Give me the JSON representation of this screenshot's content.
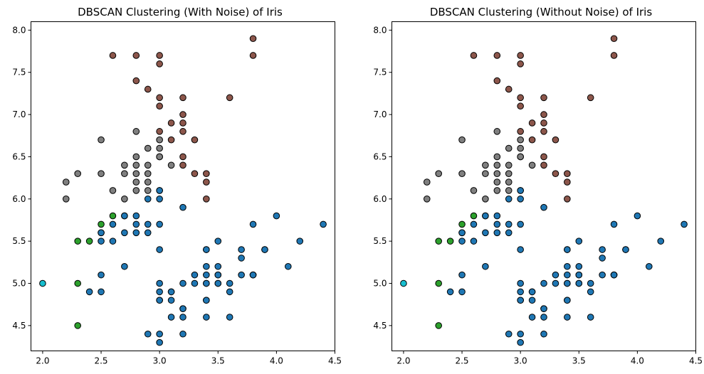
{
  "chart_data": [
    {
      "type": "scatter",
      "title": "DBSCAN Clustering (With Noise) of Iris",
      "xlim": [
        1.9,
        4.5
      ],
      "ylim": [
        4.2,
        8.1
      ],
      "xticks": [
        "2.0",
        "2.5",
        "3.0",
        "3.5",
        "4.0",
        "4.5"
      ],
      "yticks": [
        "4.5",
        "5.0",
        "5.5",
        "6.0",
        "6.5",
        "7.0",
        "7.5",
        "8.0"
      ],
      "series": [
        {
          "color": "#1f77b4",
          "points": [
            [
              3.5,
              5.1
            ],
            [
              3.0,
              4.9
            ],
            [
              3.2,
              4.7
            ],
            [
              3.1,
              4.6
            ],
            [
              3.6,
              5.0
            ],
            [
              3.9,
              5.4
            ],
            [
              3.4,
              4.6
            ],
            [
              3.4,
              5.0
            ],
            [
              2.9,
              4.4
            ],
            [
              3.1,
              4.9
            ],
            [
              3.7,
              5.4
            ],
            [
              3.4,
              4.8
            ],
            [
              3.0,
              4.8
            ],
            [
              3.0,
              4.3
            ],
            [
              4.0,
              5.8
            ],
            [
              4.4,
              5.7
            ],
            [
              3.9,
              5.4
            ],
            [
              3.5,
              5.1
            ],
            [
              3.8,
              5.7
            ],
            [
              3.8,
              5.1
            ],
            [
              3.4,
              5.4
            ],
            [
              3.7,
              5.1
            ],
            [
              3.6,
              4.6
            ],
            [
              3.3,
              5.1
            ],
            [
              3.4,
              4.8
            ],
            [
              3.0,
              5.0
            ],
            [
              3.4,
              5.0
            ],
            [
              3.5,
              5.2
            ],
            [
              3.4,
              5.2
            ],
            [
              3.2,
              4.7
            ],
            [
              3.1,
              4.8
            ],
            [
              3.4,
              5.4
            ],
            [
              4.1,
              5.2
            ],
            [
              4.2,
              5.5
            ],
            [
              3.1,
              4.9
            ],
            [
              3.2,
              5.0
            ],
            [
              3.5,
              5.5
            ],
            [
              3.6,
              4.9
            ],
            [
              3.0,
              4.4
            ],
            [
              3.4,
              5.1
            ],
            [
              3.5,
              5.0
            ],
            [
              3.2,
              4.4
            ],
            [
              3.5,
              5.0
            ],
            [
              3.8,
              5.1
            ],
            [
              3.0,
              4.8
            ],
            [
              3.8,
              5.1
            ],
            [
              3.2,
              4.6
            ],
            [
              3.7,
              5.3
            ],
            [
              3.3,
              5.0
            ],
            [
              3.2,
              5.9
            ],
            [
              3.0,
              6.0
            ],
            [
              3.0,
              6.1
            ],
            [
              2.9,
              6.0
            ],
            [
              2.7,
              5.8
            ],
            [
              2.8,
              5.7
            ],
            [
              2.5,
              5.5
            ],
            [
              2.6,
              5.7
            ],
            [
              2.7,
              5.2
            ],
            [
              2.8,
              5.6
            ],
            [
              3.0,
              5.4
            ],
            [
              2.9,
              5.6
            ],
            [
              3.0,
              5.7
            ],
            [
              2.5,
              5.1
            ],
            [
              2.6,
              5.5
            ],
            [
              2.5,
              5.6
            ],
            [
              2.7,
              5.8
            ],
            [
              2.9,
              5.7
            ],
            [
              2.8,
              5.8
            ],
            [
              3.0,
              6.1
            ],
            [
              2.7,
              5.6
            ],
            [
              2.5,
              4.9
            ],
            [
              2.4,
              4.9
            ],
            [
              2.5,
              5.6
            ]
          ]
        },
        {
          "color": "#8c564b",
          "points": [
            [
              3.8,
              7.7
            ],
            [
              3.8,
              7.9
            ],
            [
              3.0,
              7.7
            ],
            [
              2.8,
              7.7
            ],
            [
              2.6,
              7.7
            ],
            [
              3.0,
              7.6
            ],
            [
              2.8,
              7.4
            ],
            [
              2.9,
              7.3
            ],
            [
              3.0,
              7.2
            ],
            [
              3.2,
              7.2
            ],
            [
              3.6,
              7.2
            ],
            [
              3.0,
              7.1
            ],
            [
              3.2,
              7.0
            ],
            [
              3.1,
              6.9
            ],
            [
              3.2,
              6.9
            ],
            [
              3.2,
              6.8
            ],
            [
              3.0,
              6.8
            ],
            [
              3.1,
              6.7
            ],
            [
              3.3,
              6.7
            ],
            [
              3.2,
              6.5
            ],
            [
              3.2,
              6.4
            ],
            [
              3.3,
              6.3
            ],
            [
              3.4,
              6.3
            ],
            [
              3.4,
              6.2
            ],
            [
              3.4,
              6.0
            ]
          ]
        },
        {
          "color": "#7f7f7f",
          "points": [
            [
              2.5,
              6.7
            ],
            [
              2.8,
              6.8
            ],
            [
              3.0,
              6.7
            ],
            [
              2.9,
              6.6
            ],
            [
              3.0,
              6.6
            ],
            [
              2.8,
              6.5
            ],
            [
              3.0,
              6.5
            ],
            [
              2.7,
              6.4
            ],
            [
              2.8,
              6.4
            ],
            [
              2.9,
              6.4
            ],
            [
              3.1,
              6.4
            ],
            [
              2.8,
              6.3
            ],
            [
              2.9,
              6.3
            ],
            [
              2.5,
              6.3
            ],
            [
              2.3,
              6.3
            ],
            [
              2.7,
              6.3
            ],
            [
              2.8,
              6.2
            ],
            [
              2.9,
              6.2
            ],
            [
              2.2,
              6.2
            ],
            [
              2.8,
              6.1
            ],
            [
              2.9,
              6.1
            ],
            [
              2.6,
              6.1
            ],
            [
              2.2,
              6.0
            ],
            [
              2.7,
              6.0
            ],
            [
              3.0,
              6.5
            ]
          ]
        },
        {
          "color": "#2ca02c",
          "points": [
            [
              2.6,
              5.8
            ],
            [
              2.5,
              5.7
            ],
            [
              2.3,
              5.5
            ],
            [
              2.4,
              5.5
            ],
            [
              2.3,
              5.0
            ],
            [
              2.3,
              4.5
            ]
          ]
        },
        {
          "color": "#17becf",
          "points": [
            [
              2.0,
              5.0
            ]
          ]
        }
      ]
    },
    {
      "type": "scatter",
      "title": "DBSCAN Clustering (Without Noise) of Iris",
      "xlim": [
        1.9,
        4.5
      ],
      "ylim": [
        4.2,
        8.1
      ],
      "xticks": [
        "2.0",
        "2.5",
        "3.0",
        "3.5",
        "4.0",
        "4.5"
      ],
      "yticks": [
        "4.5",
        "5.0",
        "5.5",
        "6.0",
        "6.5",
        "7.0",
        "7.5",
        "8.0"
      ],
      "series": [
        {
          "color": "#1f77b4",
          "points": [
            [
              3.5,
              5.1
            ],
            [
              3.0,
              4.9
            ],
            [
              3.2,
              4.7
            ],
            [
              3.1,
              4.6
            ],
            [
              3.6,
              5.0
            ],
            [
              3.9,
              5.4
            ],
            [
              3.4,
              4.6
            ],
            [
              3.4,
              5.0
            ],
            [
              2.9,
              4.4
            ],
            [
              3.1,
              4.9
            ],
            [
              3.7,
              5.4
            ],
            [
              3.4,
              4.8
            ],
            [
              3.0,
              4.8
            ],
            [
              3.0,
              4.3
            ],
            [
              4.0,
              5.8
            ],
            [
              4.4,
              5.7
            ],
            [
              3.9,
              5.4
            ],
            [
              3.5,
              5.1
            ],
            [
              3.8,
              5.7
            ],
            [
              3.8,
              5.1
            ],
            [
              3.4,
              5.4
            ],
            [
              3.7,
              5.1
            ],
            [
              3.6,
              4.6
            ],
            [
              3.3,
              5.1
            ],
            [
              3.4,
              4.8
            ],
            [
              3.0,
              5.0
            ],
            [
              3.4,
              5.0
            ],
            [
              3.5,
              5.2
            ],
            [
              3.4,
              5.2
            ],
            [
              3.2,
              4.7
            ],
            [
              3.1,
              4.8
            ],
            [
              3.4,
              5.4
            ],
            [
              4.1,
              5.2
            ],
            [
              4.2,
              5.5
            ],
            [
              3.1,
              4.9
            ],
            [
              3.2,
              5.0
            ],
            [
              3.5,
              5.5
            ],
            [
              3.6,
              4.9
            ],
            [
              3.0,
              4.4
            ],
            [
              3.4,
              5.1
            ],
            [
              3.5,
              5.0
            ],
            [
              3.2,
              4.4
            ],
            [
              3.5,
              5.0
            ],
            [
              3.8,
              5.1
            ],
            [
              3.0,
              4.8
            ],
            [
              3.8,
              5.1
            ],
            [
              3.2,
              4.6
            ],
            [
              3.7,
              5.3
            ],
            [
              3.3,
              5.0
            ],
            [
              3.2,
              5.9
            ],
            [
              3.0,
              6.0
            ],
            [
              3.0,
              6.1
            ],
            [
              2.9,
              6.0
            ],
            [
              2.7,
              5.8
            ],
            [
              2.8,
              5.7
            ],
            [
              2.5,
              5.5
            ],
            [
              2.6,
              5.7
            ],
            [
              2.7,
              5.2
            ],
            [
              2.8,
              5.6
            ],
            [
              3.0,
              5.4
            ],
            [
              2.9,
              5.6
            ],
            [
              3.0,
              5.7
            ],
            [
              2.5,
              5.1
            ],
            [
              2.6,
              5.5
            ],
            [
              2.5,
              5.6
            ],
            [
              2.7,
              5.8
            ],
            [
              2.9,
              5.7
            ],
            [
              2.8,
              5.8
            ],
            [
              3.0,
              6.1
            ],
            [
              2.7,
              5.6
            ],
            [
              2.5,
              4.9
            ],
            [
              2.4,
              4.9
            ],
            [
              2.5,
              5.6
            ]
          ]
        },
        {
          "color": "#8c564b",
          "points": [
            [
              3.8,
              7.7
            ],
            [
              3.8,
              7.9
            ],
            [
              3.0,
              7.7
            ],
            [
              2.8,
              7.7
            ],
            [
              2.6,
              7.7
            ],
            [
              3.0,
              7.6
            ],
            [
              2.8,
              7.4
            ],
            [
              2.9,
              7.3
            ],
            [
              3.0,
              7.2
            ],
            [
              3.2,
              7.2
            ],
            [
              3.6,
              7.2
            ],
            [
              3.0,
              7.1
            ],
            [
              3.2,
              7.0
            ],
            [
              3.1,
              6.9
            ],
            [
              3.2,
              6.9
            ],
            [
              3.2,
              6.8
            ],
            [
              3.0,
              6.8
            ],
            [
              3.1,
              6.7
            ],
            [
              3.3,
              6.7
            ],
            [
              3.2,
              6.5
            ],
            [
              3.2,
              6.4
            ],
            [
              3.3,
              6.3
            ],
            [
              3.4,
              6.3
            ],
            [
              3.4,
              6.2
            ],
            [
              3.4,
              6.0
            ]
          ]
        },
        {
          "color": "#7f7f7f",
          "points": [
            [
              2.5,
              6.7
            ],
            [
              2.8,
              6.8
            ],
            [
              3.0,
              6.7
            ],
            [
              2.9,
              6.6
            ],
            [
              3.0,
              6.6
            ],
            [
              2.8,
              6.5
            ],
            [
              3.0,
              6.5
            ],
            [
              2.7,
              6.4
            ],
            [
              2.8,
              6.4
            ],
            [
              2.9,
              6.4
            ],
            [
              3.1,
              6.4
            ],
            [
              2.8,
              6.3
            ],
            [
              2.9,
              6.3
            ],
            [
              2.5,
              6.3
            ],
            [
              2.3,
              6.3
            ],
            [
              2.7,
              6.3
            ],
            [
              2.8,
              6.2
            ],
            [
              2.9,
              6.2
            ],
            [
              2.2,
              6.2
            ],
            [
              2.8,
              6.1
            ],
            [
              2.9,
              6.1
            ],
            [
              2.6,
              6.1
            ],
            [
              2.2,
              6.0
            ],
            [
              2.7,
              6.0
            ],
            [
              3.0,
              6.5
            ]
          ]
        },
        {
          "color": "#2ca02c",
          "points": [
            [
              2.6,
              5.8
            ],
            [
              2.5,
              5.7
            ],
            [
              2.3,
              5.5
            ],
            [
              2.4,
              5.5
            ],
            [
              2.3,
              5.0
            ],
            [
              2.3,
              4.5
            ]
          ]
        },
        {
          "color": "#17becf",
          "points": [
            [
              2.0,
              5.0
            ]
          ]
        }
      ]
    }
  ]
}
